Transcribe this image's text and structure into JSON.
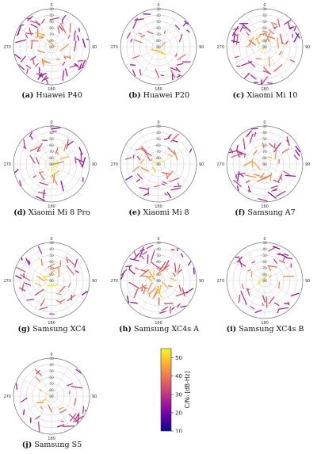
{
  "chart_data": [
    {
      "type": "scatter",
      "subtype": "polar skyplot",
      "panel": "(a)",
      "device": "Huawei P40",
      "azimuth_ticks": [
        "0",
        "90",
        "180",
        "270"
      ],
      "elevation_ticks": [
        "30",
        "40",
        "50",
        "60",
        "70",
        "80",
        "90"
      ],
      "density": 1.0
    },
    {
      "type": "scatter",
      "subtype": "polar skyplot",
      "panel": "(b)",
      "device": "Huawei P20",
      "azimuth_ticks": [
        "0",
        "90",
        "180",
        "270"
      ],
      "elevation_ticks": [
        "30",
        "40",
        "50",
        "60",
        "70",
        "80",
        "90"
      ],
      "density": 0.5
    },
    {
      "type": "scatter",
      "subtype": "polar skyplot",
      "panel": "(c)",
      "device": "Xiaomi Mi 10",
      "azimuth_ticks": [
        "0",
        "90",
        "180",
        "270"
      ],
      "elevation_ticks": [
        "30",
        "40",
        "50",
        "60",
        "70",
        "80",
        "90"
      ],
      "density": 0.8
    },
    {
      "type": "scatter",
      "subtype": "polar skyplot",
      "panel": "(d)",
      "device": "Xiaomi Mi 8 Pro",
      "azimuth_ticks": [
        "0",
        "90",
        "180",
        "270"
      ],
      "elevation_ticks": [
        "30",
        "40",
        "50",
        "60",
        "70",
        "80",
        "90"
      ],
      "density": 0.6
    },
    {
      "type": "scatter",
      "subtype": "polar skyplot",
      "panel": "(e)",
      "device": "Xiaomi Mi 8",
      "azimuth_ticks": [
        "0",
        "90",
        "180",
        "270"
      ],
      "elevation_ticks": [
        "30",
        "40",
        "50",
        "60",
        "70",
        "80",
        "90"
      ],
      "density": 0.6
    },
    {
      "type": "scatter",
      "subtype": "polar skyplot",
      "panel": "(f)",
      "device": "Samsung A7",
      "azimuth_ticks": [
        "0",
        "90",
        "180",
        "270"
      ],
      "elevation_ticks": [
        "30",
        "40",
        "50",
        "60",
        "70",
        "80",
        "90"
      ],
      "density": 0.8
    },
    {
      "type": "scatter",
      "subtype": "polar skyplot",
      "panel": "(g)",
      "device": "Samsung XC4",
      "azimuth_ticks": [
        "0",
        "90",
        "180",
        "270"
      ],
      "elevation_ticks": [
        "30",
        "40",
        "50",
        "60",
        "70",
        "80",
        "90"
      ],
      "density": 0.6
    },
    {
      "type": "scatter",
      "subtype": "polar skyplot",
      "panel": "(h)",
      "device": "Samsung XC4s A",
      "azimuth_ticks": [
        "0",
        "90",
        "180",
        "270"
      ],
      "elevation_ticks": [
        "30",
        "40",
        "50",
        "60",
        "70",
        "80",
        "90"
      ],
      "density": 1.0
    },
    {
      "type": "scatter",
      "subtype": "polar skyplot",
      "panel": "(i)",
      "device": "Samsung XC4s B",
      "azimuth_ticks": [
        "0",
        "90",
        "180",
        "270"
      ],
      "elevation_ticks": [
        "30",
        "40",
        "50",
        "60",
        "70",
        "80",
        "90"
      ],
      "density": 0.6
    },
    {
      "type": "scatter",
      "subtype": "polar skyplot",
      "panel": "(j)",
      "device": "Samsung S5",
      "azimuth_ticks": [
        "0",
        "90",
        "180",
        "270"
      ],
      "elevation_ticks": [
        "30",
        "40",
        "50",
        "60",
        "70",
        "80",
        "90"
      ],
      "density": 0.45
    }
  ],
  "colorbar": {
    "label": "C/N₀ [dB-Hz]",
    "ticks": [
      "10",
      "20",
      "30",
      "40",
      "50"
    ],
    "range": [
      10,
      55
    ],
    "colormap": [
      "#0d0887",
      "#5c01a6",
      "#9c179e",
      "#cc4778",
      "#ed7953",
      "#fdb42f",
      "#f0f921"
    ]
  }
}
